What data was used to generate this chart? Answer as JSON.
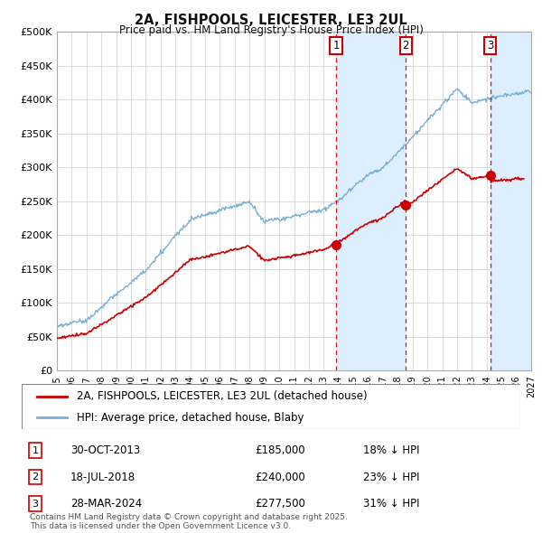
{
  "title1": "2A, FISHPOOLS, LEICESTER, LE3 2UL",
  "title2": "Price paid vs. HM Land Registry's House Price Index (HPI)",
  "ylabel_ticks": [
    "£0",
    "£50K",
    "£100K",
    "£150K",
    "£200K",
    "£250K",
    "£300K",
    "£350K",
    "£400K",
    "£450K",
    "£500K"
  ],
  "ytick_vals": [
    0,
    50000,
    100000,
    150000,
    200000,
    250000,
    300000,
    350000,
    400000,
    450000,
    500000
  ],
  "xlim": [
    1995,
    2027
  ],
  "ylim": [
    0,
    500000
  ],
  "legend_line1": "2A, FISHPOOLS, LEICESTER, LE3 2UL (detached house)",
  "legend_line2": "HPI: Average price, detached house, Blaby",
  "line_color_red": "#cc0000",
  "line_color_blue": "#7aafd4",
  "dot_color_red": "#cc0000",
  "transactions": [
    {
      "num": 1,
      "date": "30-OCT-2013",
      "price": 185000,
      "pct": "18%",
      "x": 2013.83,
      "y_red": 185000
    },
    {
      "num": 2,
      "date": "18-JUL-2018",
      "price": 240000,
      "pct": "23%",
      "x": 2018.54,
      "y_red": 240000
    },
    {
      "num": 3,
      "date": "28-MAR-2024",
      "price": 277500,
      "pct": "31%",
      "x": 2024.24,
      "y_red": 277500
    }
  ],
  "footer": "Contains HM Land Registry data © Crown copyright and database right 2025.\nThis data is licensed under the Open Government Licence v3.0.",
  "bg_color": "#ffffff",
  "grid_color": "#cccccc",
  "shade_color": "#ddeeff"
}
